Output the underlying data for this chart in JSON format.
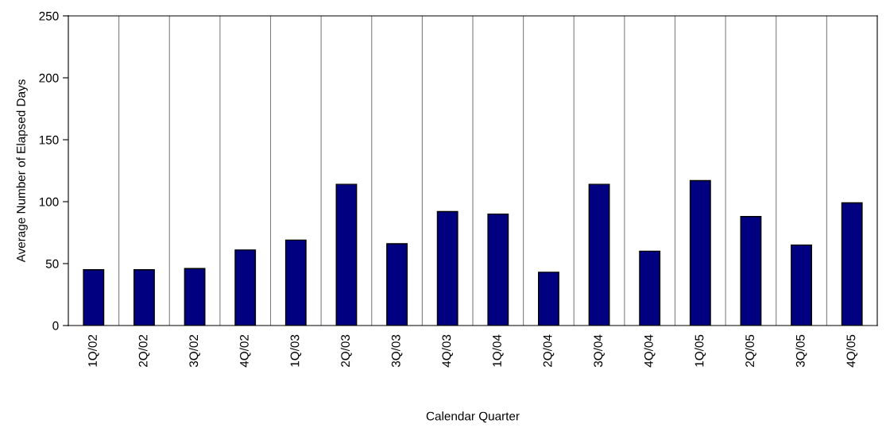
{
  "chart_data": {
    "type": "bar",
    "xlabel": "Calendar Quarter",
    "ylabel": "Average Number of Elapsed Days",
    "categories": [
      "1Q/02",
      "2Q/02",
      "3Q/02",
      "4Q/02",
      "1Q/03",
      "2Q/03",
      "3Q/03",
      "4Q/03",
      "1Q/04",
      "2Q/04",
      "3Q/04",
      "4Q/04",
      "1Q/05",
      "2Q/05",
      "3Q/05",
      "4Q/05"
    ],
    "values": [
      45,
      45,
      46,
      61,
      69,
      114,
      66,
      92,
      90,
      43,
      114,
      60,
      117,
      88,
      65,
      99
    ],
    "color": "#000080",
    "ylim": [
      0,
      250
    ],
    "yticks": [
      0,
      50,
      100,
      150,
      200,
      250
    ],
    "grid": "x",
    "legend": false
  }
}
